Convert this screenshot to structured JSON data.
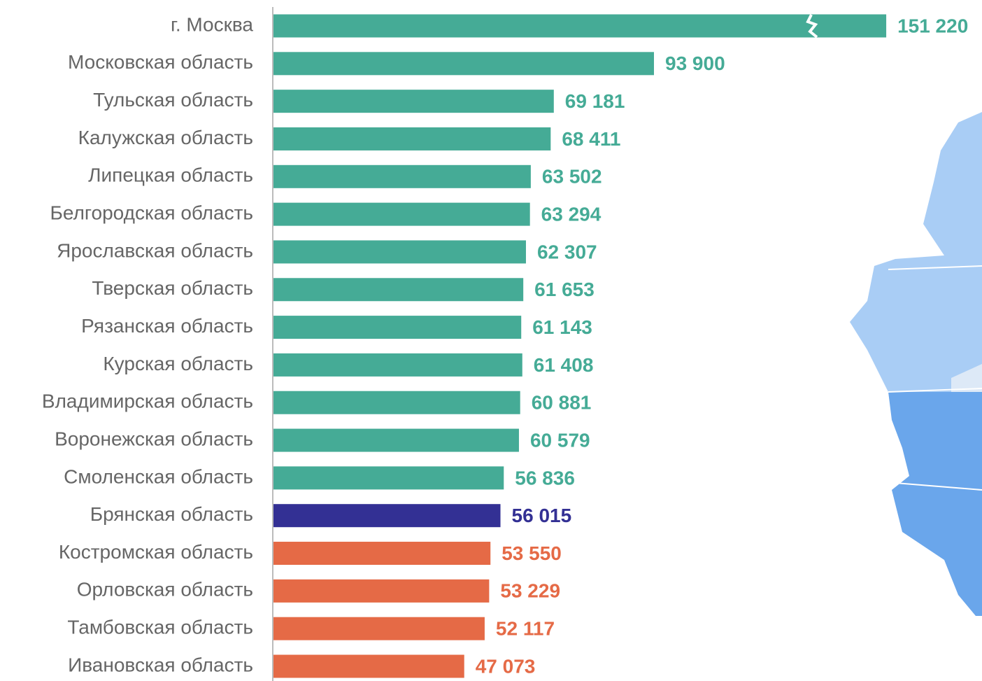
{
  "chart_data": {
    "type": "barh",
    "categories": [
      "г. Москва",
      "Московская область",
      "Тульская область",
      "Калужская область",
      "Липецкая область",
      "Белгородская область",
      "Ярославская область",
      "Тверская область",
      "Рязанская область",
      "Курская область",
      "Владимирская область",
      "Воронежская область",
      "Смоленская область",
      "Брянская область",
      "Костромская область",
      "Орловская область",
      "Тамбовская область",
      "Ивановская область"
    ],
    "values": [
      151220,
      93900,
      69181,
      68411,
      63502,
      63294,
      62307,
      61653,
      61143,
      61408,
      60881,
      60579,
      56836,
      56015,
      53550,
      53229,
      52117,
      47073
    ],
    "value_labels": [
      "151 220",
      "93 900",
      "69 181",
      "68 411",
      "63 502",
      "63 294",
      "62 307",
      "61 653",
      "61 143",
      "61 408",
      "60 881",
      "60 579",
      "56 836",
      "56 015",
      "53 550",
      "53 229",
      "52 117",
      "47 073"
    ],
    "colors": [
      "#45ab96",
      "#45ab96",
      "#45ab96",
      "#45ab96",
      "#45ab96",
      "#45ab96",
      "#45ab96",
      "#45ab96",
      "#45ab96",
      "#45ab96",
      "#45ab96",
      "#45ab96",
      "#45ab96",
      "#333094",
      "#e56a46",
      "#e56a46",
      "#e56a46",
      "#e56a46"
    ]
  }
}
